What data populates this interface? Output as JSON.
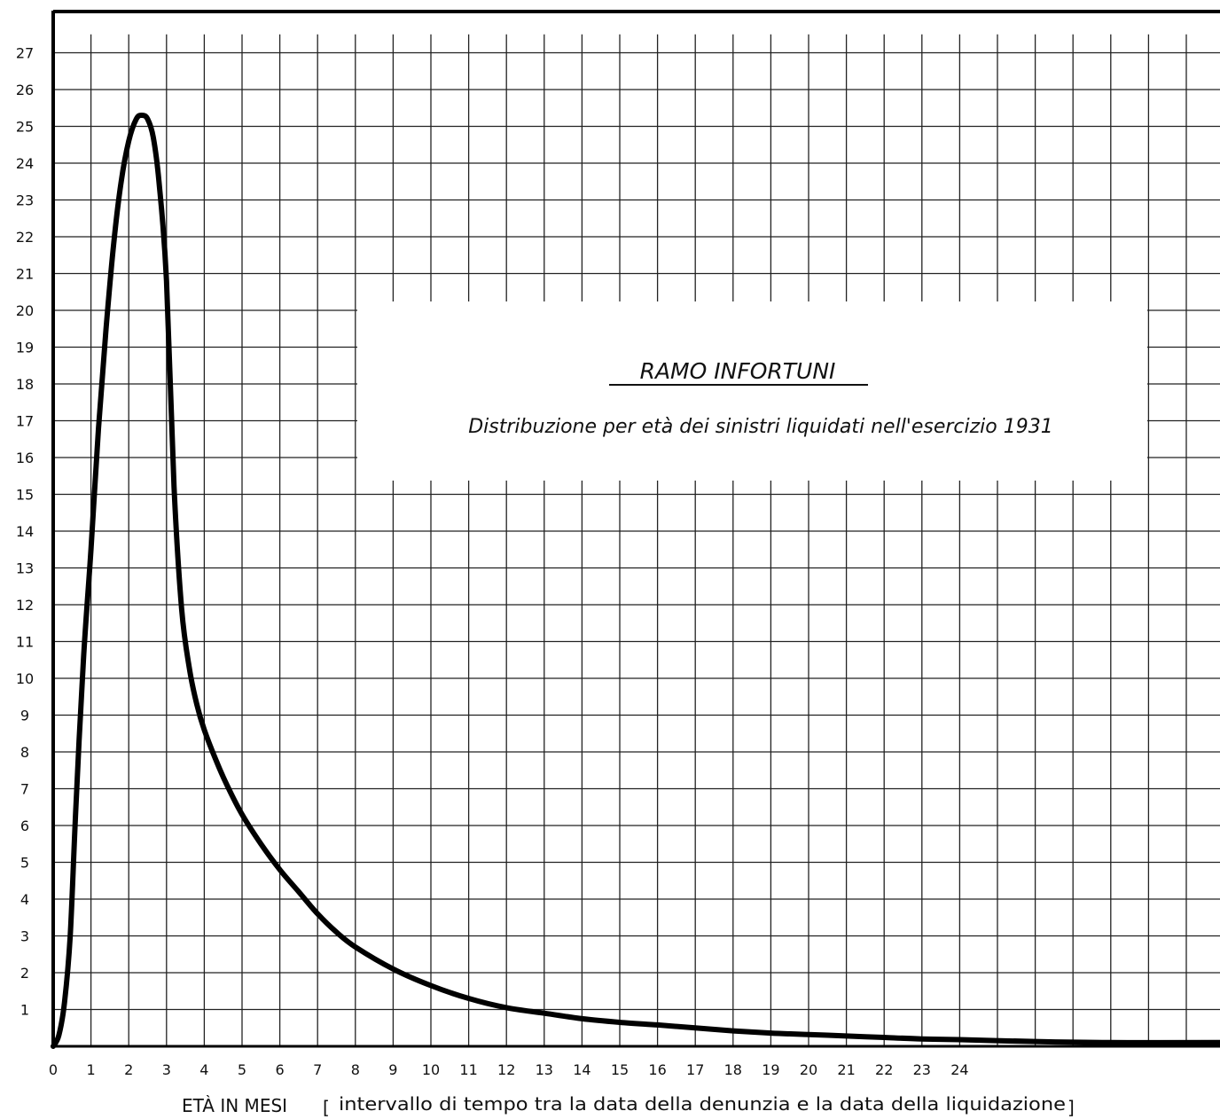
{
  "chart_data": {
    "type": "line",
    "title": "RAMO INFORTUNI",
    "subtitle": "Distribuzione per età dei sinistri liquidati nell'esercizio 1931",
    "xlabel": "ETÀ IN MESI",
    "xlabel_bracket": "intervallo di tempo tra la data della denunzia e la data della liquidazione",
    "xlim": [
      0,
      31
    ],
    "ylim": [
      0,
      27.5
    ],
    "grid": true,
    "x_ticks": [
      0,
      1,
      2,
      3,
      4,
      5,
      6,
      7,
      8,
      9,
      10,
      11,
      12,
      13,
      14,
      15,
      16,
      17,
      18,
      19,
      20,
      21,
      22,
      23,
      24
    ],
    "y_ticks": [
      1,
      2,
      3,
      4,
      5,
      6,
      7,
      8,
      9,
      10,
      11,
      12,
      13,
      14,
      15,
      16,
      17,
      18,
      19,
      20,
      21,
      22,
      23,
      24,
      25,
      26,
      27
    ],
    "series": [
      {
        "x": [
          0,
          0.15,
          0.3,
          0.45,
          0.6,
          0.8,
          1.0,
          1.2,
          1.4,
          1.6,
          1.8,
          2.0,
          2.2,
          2.35,
          2.5,
          2.65,
          2.8,
          3.0,
          3.2,
          3.4,
          3.6,
          3.8,
          4.0,
          4.3,
          4.6,
          5.0,
          5.5,
          6.0,
          6.5,
          7.0,
          7.5,
          8.0,
          9.0,
          10.0,
          11.0,
          12.0,
          13.0,
          14.0,
          15.0,
          16.0,
          17.0,
          18.0,
          19.0,
          20.0,
          21.0,
          22.0,
          23.0,
          24.0,
          26.0,
          28.0,
          31.0
        ],
        "y": [
          0,
          0.3,
          1.2,
          3.0,
          6.5,
          10.5,
          13.5,
          16.8,
          19.5,
          21.8,
          23.5,
          24.6,
          25.2,
          25.3,
          25.2,
          24.7,
          23.5,
          20.8,
          15.2,
          11.9,
          10.3,
          9.3,
          8.6,
          7.8,
          7.1,
          6.3,
          5.5,
          4.8,
          4.2,
          3.6,
          3.1,
          2.7,
          2.1,
          1.65,
          1.3,
          1.05,
          0.9,
          0.75,
          0.65,
          0.58,
          0.5,
          0.42,
          0.36,
          0.32,
          0.28,
          0.24,
          0.2,
          0.18,
          0.13,
          0.1,
          0.1
        ]
      }
    ]
  }
}
